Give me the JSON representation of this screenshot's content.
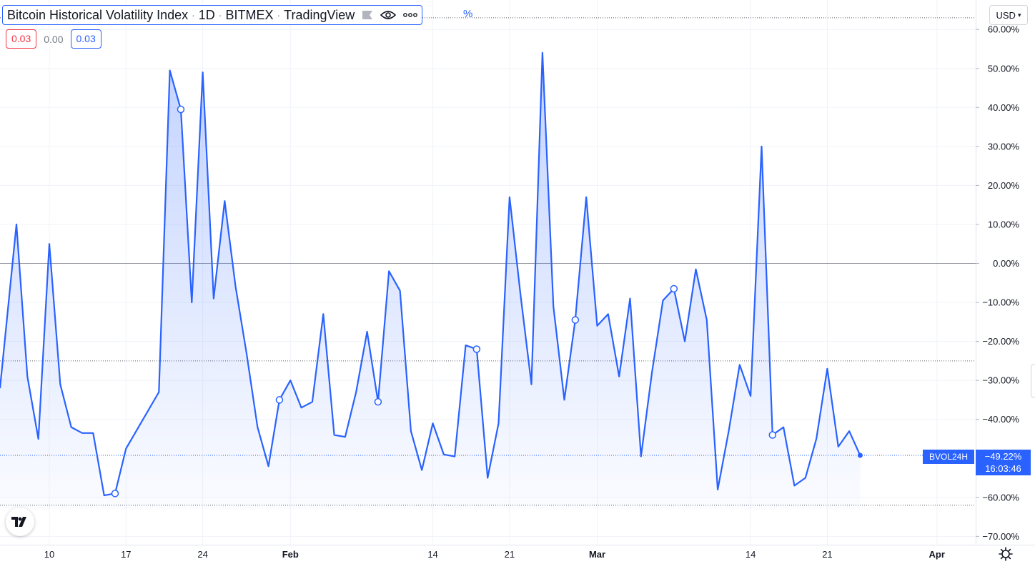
{
  "legend": {
    "title": "Bitcoin Historical Volatility Index",
    "interval": "1D",
    "exchange": "BITMEX",
    "source": "TradingView",
    "trailing_unit": "%",
    "values": [
      "0.03",
      "0.00",
      "0.03"
    ]
  },
  "currency": {
    "label": "USD"
  },
  "price_label": {
    "name": "BVOL24H",
    "value": "−49.22%",
    "countdown": "16:03:46"
  },
  "icons": {
    "eye": "eye-icon",
    "more": "more-dots-icon",
    "flag": "flag-icon",
    "logo": "tradingview-logo-icon",
    "settings": "gear-icon"
  },
  "colors": {
    "line": "#2962ff",
    "fill": "#2962ff",
    "grid": "#f0f3fa",
    "zero_line": "#9598a1",
    "axis_text": "#131722"
  },
  "chart_data": {
    "type": "area",
    "title": "Bitcoin Historical Volatility Index · 1D · BITMEX",
    "series": [
      {
        "name": "BVOL24H",
        "x": [
          "Jan 6",
          "Jan 7",
          "Jan 8",
          "Jan 9",
          "Jan 10",
          "Jan 11",
          "Jan 12",
          "Jan 13",
          "Jan 14",
          "Jan 15",
          "Jan 16",
          "Jan 17",
          "Jan 20",
          "Jan 21",
          "Jan 22",
          "Jan 23",
          "Jan 24",
          "Jan 25",
          "Jan 26",
          "Jan 27",
          "Jan 28",
          "Jan 29",
          "Jan 30",
          "Jan 31",
          "Feb 1",
          "Feb 2",
          "Feb 3",
          "Feb 4",
          "Feb 5",
          "Feb 6",
          "Feb 7",
          "Feb 8",
          "Feb 9",
          "Feb 10",
          "Feb 11",
          "Feb 12",
          "Feb 13",
          "Feb 14",
          "Feb 15",
          "Feb 16",
          "Feb 17",
          "Feb 18",
          "Feb 19",
          "Feb 20",
          "Feb 21",
          "Feb 22",
          "Feb 23",
          "Feb 24",
          "Feb 25",
          "Feb 26",
          "Feb 27",
          "Feb 28",
          "Mar 1",
          "Mar 2",
          "Mar 3",
          "Mar 4",
          "Mar 5",
          "Mar 6",
          "Mar 7",
          "Mar 8",
          "Mar 9",
          "Mar 10",
          "Mar 11",
          "Mar 12",
          "Mar 13",
          "Mar 14",
          "Mar 15",
          "Mar 16",
          "Mar 17",
          "Mar 18",
          "Mar 19",
          "Mar 20",
          "Mar 21",
          "Mar 22",
          "Mar 23",
          "Mar 24",
          "Mar 25"
        ],
        "values": [
          -32,
          10,
          -29,
          -45,
          5,
          -31,
          -42,
          -43.5,
          -43.5,
          -59.5,
          -59,
          -47.5,
          -33,
          49.5,
          39.5,
          -10,
          49,
          -9,
          16,
          -6,
          -23,
          -42,
          -52,
          -35,
          -30,
          -37,
          -35.5,
          -13,
          -44,
          -44.5,
          -33,
          -17.5,
          -35.5,
          -2,
          -7,
          -43,
          -53,
          -41,
          -49,
          -49.5,
          -21,
          -22,
          -55,
          -41,
          17,
          -8,
          -31,
          54,
          -11,
          -35,
          -14.5,
          17,
          -16,
          -13,
          -29,
          -9,
          -49.5,
          -28,
          -9.5,
          -6.5,
          -20,
          -1.5,
          -14.5,
          -58,
          -43,
          -26,
          -34,
          30,
          -44,
          -42,
          -57,
          -55,
          -45,
          -27,
          -47,
          -43,
          -49.22
        ]
      }
    ],
    "xlabel": "",
    "ylabel": "",
    "x_ticks": [
      "10",
      "17",
      "24",
      "Feb",
      "14",
      "21",
      "Mar",
      "14",
      "21",
      "Apr"
    ],
    "y_ticks": [
      "60.00%",
      "50.00%",
      "40.00%",
      "30.00%",
      "20.00%",
      "10.00%",
      "0.00%",
      "−10.00%",
      "−20.00%",
      "−30.00%",
      "−40.00%",
      "−60.00%",
      "−70.00%"
    ],
    "ylim": [
      -71,
      64
    ],
    "grid": true,
    "reference_lines": [
      0
    ]
  }
}
